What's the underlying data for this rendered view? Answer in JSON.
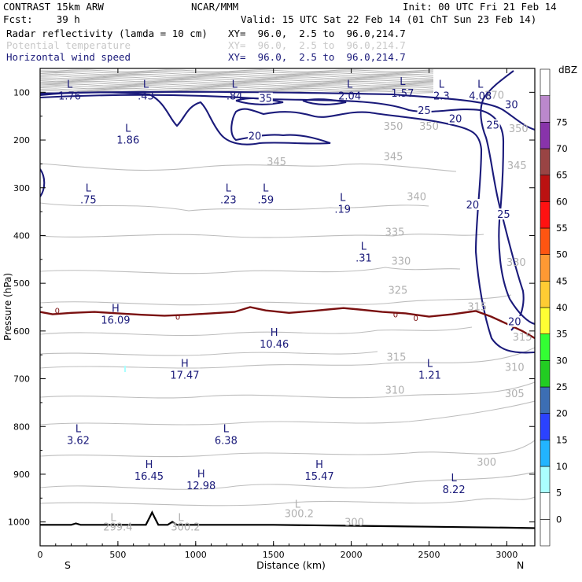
{
  "header": {
    "model": "CONTRAST 15km ARW",
    "org": "NCAR/MMM",
    "init": "Init: 00 UTC Fri 21 Feb 14",
    "fcst": "Fcst:    39 h",
    "valid": "Valid: 15 UTC Sat 22 Feb 14 (01 ChT Sun 23 Feb 14)"
  },
  "fields": [
    {
      "name": "Radar reflectivity (lamda = 10 cm)",
      "xy": "XY=  96.0,  2.5 to  96.0,214.7",
      "color": "#000000"
    },
    {
      "name": "Potential temperature",
      "xy": "XY=  96.0,  2.5 to  96.0,214.7",
      "color": "#c8c8c8"
    },
    {
      "name": "Horizontal wind speed",
      "xy": "XY=  96.0,  2.5 to  96.0,214.7",
      "color": "#1a1a7a"
    }
  ],
  "chart_data": {
    "type": "cross-section",
    "xlabel": "Distance (km)",
    "ylabel": "Pressure (hPa)",
    "xlim": [
      0,
      3180
    ],
    "ylim": [
      1050,
      50
    ],
    "x_ticks": [
      "0",
      "500",
      "1000",
      "1500",
      "2000",
      "2500",
      "3000"
    ],
    "x_tick_values": [
      0,
      500,
      1000,
      1500,
      2000,
      2500,
      3000
    ],
    "y_ticks": [
      "100",
      "200",
      "300",
      "400",
      "500",
      "600",
      "700",
      "800",
      "900",
      "1000"
    ],
    "y_tick_values": [
      100,
      200,
      300,
      400,
      500,
      600,
      700,
      800,
      900,
      1000
    ],
    "end_left": "S",
    "end_right": "N",
    "colorbar": {
      "unit": "dBZ",
      "levels": [
        "0",
        "5",
        "10",
        "15",
        "20",
        "25",
        "30",
        "35",
        "40",
        "45",
        "50",
        "55",
        "60",
        "65",
        "70",
        "75"
      ],
      "colors": [
        "#ffffff",
        "#ffffff",
        "#aaffff",
        "#22b4ff",
        "#2b42ff",
        "#3c6eb4",
        "#22cc22",
        "#33ff33",
        "#ffff33",
        "#ffcc33",
        "#ff9933",
        "#ff5511",
        "#ff1111",
        "#bb1111",
        "#994444",
        "#8833aa",
        "#bb88cc",
        "#ffffff"
      ]
    },
    "theta_labels": [
      {
        "text": "370",
        "x": 2920,
        "p": 105
      },
      {
        "text": "350",
        "x": 2270,
        "p": 170
      },
      {
        "text": "350",
        "x": 2500,
        "p": 170
      },
      {
        "text": "345",
        "x": 1520,
        "p": 244
      },
      {
        "text": "345",
        "x": 2270,
        "p": 234
      },
      {
        "text": "345",
        "x": 3065,
        "p": 253
      },
      {
        "text": "350",
        "x": 3075,
        "p": 175
      },
      {
        "text": "340",
        "x": 2420,
        "p": 318
      },
      {
        "text": "335",
        "x": 2280,
        "p": 392
      },
      {
        "text": "330",
        "x": 2320,
        "p": 453
      },
      {
        "text": "330",
        "x": 3060,
        "p": 455
      },
      {
        "text": "325",
        "x": 2300,
        "p": 514
      },
      {
        "text": "315",
        "x": 2810,
        "p": 548
      },
      {
        "text": "315",
        "x": 3100,
        "p": 612
      },
      {
        "text": "315",
        "x": 2290,
        "p": 654
      },
      {
        "text": "310",
        "x": 3050,
        "p": 675
      },
      {
        "text": "310",
        "x": 2280,
        "p": 723
      },
      {
        "text": "305",
        "x": 3050,
        "p": 730
      },
      {
        "text": "300",
        "x": 2870,
        "p": 874
      },
      {
        "text": "300",
        "x": 2020,
        "p": 1000
      },
      {
        "text": "300.2",
        "x": 1665,
        "p": 982
      },
      {
        "text": "300.2",
        "x": 935,
        "p": 1010
      },
      {
        "text": "299.4",
        "x": 500,
        "p": 1010
      }
    ],
    "theta_L_markers": [
      {
        "x": 1655,
        "p": 962
      },
      {
        "x": 905,
        "p": 990
      },
      {
        "x": 470,
        "p": 990
      }
    ],
    "wind_labels": [
      {
        "text": "35",
        "x": 1450,
        "p": 112
      },
      {
        "text": "25",
        "x": 2470,
        "p": 137
      },
      {
        "text": "30",
        "x": 3030,
        "p": 125
      },
      {
        "text": "25",
        "x": 2910,
        "p": 168
      },
      {
        "text": "20",
        "x": 2670,
        "p": 155
      },
      {
        "text": "20",
        "x": 1380,
        "p": 191
      },
      {
        "text": "20",
        "x": 2780,
        "p": 335
      },
      {
        "text": "25",
        "x": 2980,
        "p": 355
      },
      {
        "text": "20",
        "x": 3050,
        "p": 580
      }
    ],
    "extrema": [
      {
        "type": "L",
        "value": "1.76",
        "x": 190,
        "p": 90
      },
      {
        "type": "L",
        "value": ".43",
        "x": 680,
        "p": 90
      },
      {
        "type": "L",
        "value": ".84",
        "x": 1250,
        "p": 90
      },
      {
        "type": "L",
        "value": "2.04",
        "x": 1990,
        "p": 90
      },
      {
        "type": "L",
        "value": "1.57",
        "x": 2330,
        "p": 85
      },
      {
        "type": "L",
        "value": "2.3",
        "x": 2580,
        "p": 90
      },
      {
        "type": "L",
        "value": "4.08",
        "x": 2830,
        "p": 90
      },
      {
        "type": "L",
        "value": "1.86",
        "x": 565,
        "p": 183
      },
      {
        "type": "L",
        "value": ".75",
        "x": 310,
        "p": 308
      },
      {
        "type": "L",
        "value": ".23",
        "x": 1210,
        "p": 308
      },
      {
        "type": "L",
        "value": ".59",
        "x": 1450,
        "p": 308
      },
      {
        "type": "L",
        "value": ".19",
        "x": 1945,
        "p": 328
      },
      {
        "type": "L",
        "value": ".31",
        "x": 2080,
        "p": 430
      },
      {
        "type": "H",
        "value": "16.09",
        "x": 485,
        "p": 560
      },
      {
        "type": "H",
        "value": "10.46",
        "x": 1505,
        "p": 610
      },
      {
        "type": "H",
        "value": "17.47",
        "x": 930,
        "p": 675
      },
      {
        "type": "L",
        "value": "1.21",
        "x": 2505,
        "p": 675
      },
      {
        "type": "L",
        "value": "3.62",
        "x": 245,
        "p": 812
      },
      {
        "type": "L",
        "value": "6.38",
        "x": 1195,
        "p": 812
      },
      {
        "type": "H",
        "value": "16.45",
        "x": 700,
        "p": 887
      },
      {
        "type": "H",
        "value": "15.47",
        "x": 1795,
        "p": 887
      },
      {
        "type": "H",
        "value": "12.98",
        "x": 1035,
        "p": 907
      },
      {
        "type": "L",
        "value": "8.22",
        "x": 2660,
        "p": 915
      }
    ],
    "freezing_level": {
      "label": "0",
      "label_positions": [
        {
          "x": 110,
          "p": 557
        },
        {
          "x": 885,
          "p": 570
        },
        {
          "x": 2285,
          "p": 565
        },
        {
          "x": 2415,
          "p": 572
        }
      ],
      "x": [
        0,
        80,
        200,
        350,
        500,
        650,
        800,
        950,
        1100,
        1250,
        1350,
        1450,
        1600,
        1750,
        1850,
        1950,
        2050,
        2200,
        2350,
        2500,
        2650,
        2800,
        2900,
        3000,
        3100,
        3180
      ],
      "p": [
        560,
        565,
        562,
        560,
        563,
        566,
        568,
        566,
        563,
        560,
        550,
        557,
        562,
        558,
        555,
        552,
        555,
        560,
        563,
        570,
        565,
        558,
        570,
        585,
        600,
        615
      ]
    },
    "ground": {
      "x": [
        0,
        200,
        230,
        260,
        500,
        680,
        705,
        720,
        735,
        760,
        820,
        850,
        880,
        1000,
        1500,
        2000,
        2500,
        3000,
        3180
      ],
      "p": [
        1006,
        1006,
        1003,
        1006,
        1006,
        1006,
        990,
        980,
        990,
        1006,
        1006,
        1000,
        1006,
        1006,
        1006,
        1008,
        1010,
        1012,
        1013
      ]
    },
    "freezing_label_color": "#7a1010"
  }
}
